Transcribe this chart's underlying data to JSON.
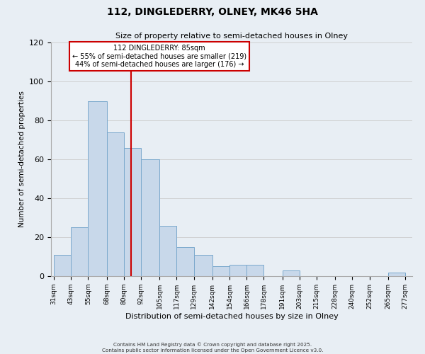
{
  "title": "112, DINGLEDERRY, OLNEY, MK46 5HA",
  "subtitle": "Size of property relative to semi-detached houses in Olney",
  "xlabel": "Distribution of semi-detached houses by size in Olney",
  "ylabel": "Number of semi-detached properties",
  "bar_edges": [
    31,
    43,
    55,
    68,
    80,
    92,
    105,
    117,
    129,
    142,
    154,
    166,
    178,
    191,
    203,
    215,
    228,
    240,
    252,
    265,
    277
  ],
  "bar_heights": [
    11,
    25,
    90,
    74,
    66,
    60,
    26,
    15,
    11,
    5,
    6,
    6,
    0,
    3,
    0,
    0,
    0,
    0,
    0,
    2
  ],
  "bar_color": "#c8d8ea",
  "bar_edge_color": "#7aa8cc",
  "tick_labels": [
    "31sqm",
    "43sqm",
    "55sqm",
    "68sqm",
    "80sqm",
    "92sqm",
    "105sqm",
    "117sqm",
    "129sqm",
    "142sqm",
    "154sqm",
    "166sqm",
    "178sqm",
    "191sqm",
    "203sqm",
    "215sqm",
    "228sqm",
    "240sqm",
    "252sqm",
    "265sqm",
    "277sqm"
  ],
  "ylim": [
    0,
    120
  ],
  "yticks": [
    0,
    20,
    40,
    60,
    80,
    100,
    120
  ],
  "property_value": 85,
  "vline_color": "#cc0000",
  "annotation_text": "112 DINGLEDERRY: 85sqm\n← 55% of semi-detached houses are smaller (219)\n44% of semi-detached houses are larger (176) →",
  "annotation_box_color": "#ffffff",
  "annotation_box_edge": "#cc0000",
  "grid_color": "#cccccc",
  "bg_color": "#e8eef4",
  "footer_line1": "Contains HM Land Registry data © Crown copyright and database right 2025.",
  "footer_line2": "Contains public sector information licensed under the Open Government Licence v3.0."
}
